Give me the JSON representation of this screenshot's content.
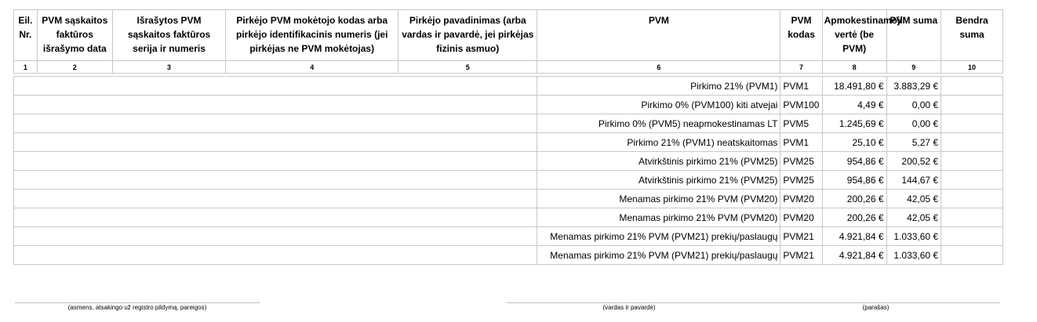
{
  "headers": [
    {
      "top": "Eil.",
      "rest": "Nr."
    },
    {
      "top": "PVM sąskaitos",
      "rest": "faktūros išrašymo data"
    },
    {
      "top": "Išrašytos PVM",
      "rest": "sąskaitos faktūros serija ir numeris"
    },
    {
      "top": "Pirkėjo PVM mokėtojo kodas arba",
      "rest": "pirkėjo identifikacinis numeris (jei pirkėjas ne PVM mokėtojas)"
    },
    {
      "top": "Pirkėjo pavadinimas (arba",
      "rest": "vardas ir pavardė, jei pirkėjas fizinis asmuo)"
    },
    {
      "top": "PVM",
      "rest": ""
    },
    {
      "top": "PVM",
      "rest": "kodas"
    },
    {
      "top": "Apmokestinamoji",
      "rest": "vertė (be PVM)"
    },
    {
      "top": "PVM suma",
      "rest": ""
    },
    {
      "top": "Bendra",
      "rest": "suma"
    }
  ],
  "column_numbers": [
    "1",
    "2",
    "3",
    "4",
    "5",
    "6",
    "7",
    "8",
    "9",
    "10"
  ],
  "rows": [
    {
      "pvm": "Pirkimo 21% (PVM1)",
      "code": "PVM1",
      "value": "18.491,80 €",
      "vat": "3.883,29 €",
      "total": ""
    },
    {
      "pvm": "Pirkimo 0% (PVM100) kiti atvejai",
      "code": "PVM100",
      "value": "4,49 €",
      "vat": "0,00 €",
      "total": ""
    },
    {
      "pvm": "Pirkimo 0% (PVM5) neapmokestinamas LT",
      "code": "PVM5",
      "value": "1.245,69 €",
      "vat": "0,00 €",
      "total": ""
    },
    {
      "pvm": "Pirkimo 21% (PVM1) neatskaitomas",
      "code": "PVM1",
      "value": "25,10 €",
      "vat": "5,27 €",
      "total": ""
    },
    {
      "pvm": "Atvirkštinis pirkimo 21% (PVM25)",
      "code": "PVM25",
      "value": "954,86 €",
      "vat": "200,52 €",
      "total": ""
    },
    {
      "pvm": "Atvirkštinis pirkimo 21% (PVM25)",
      "code": "PVM25",
      "value": "954,86 €",
      "vat": "144,67 €",
      "total": ""
    },
    {
      "pvm": "Menamas pirkimo 21% PVM (PVM20)",
      "code": "PVM20",
      "value": "200,26 €",
      "vat": "42,05 €",
      "total": ""
    },
    {
      "pvm": "Menamas pirkimo 21% PVM (PVM20)",
      "code": "PVM20",
      "value": "200,26 €",
      "vat": "42,05 €",
      "total": ""
    },
    {
      "pvm": "Menamas pirkimo 21% PVM (PVM21) prekių/paslaugų",
      "code": "PVM21",
      "value": "4.921,84 €",
      "vat": "1.033,60 €",
      "total": ""
    },
    {
      "pvm": "Menamas pirkimo 21% PVM (PVM21) prekių/paslaugų",
      "code": "PVM21",
      "value": "4.921,84 €",
      "vat": "1.033,60 €",
      "total": ""
    }
  ],
  "signatures": {
    "position": "(asmens, atsakingo už registro pildymą, pareigos)",
    "name": "(vardas ir pavardė)",
    "signature": "(parašas)"
  }
}
